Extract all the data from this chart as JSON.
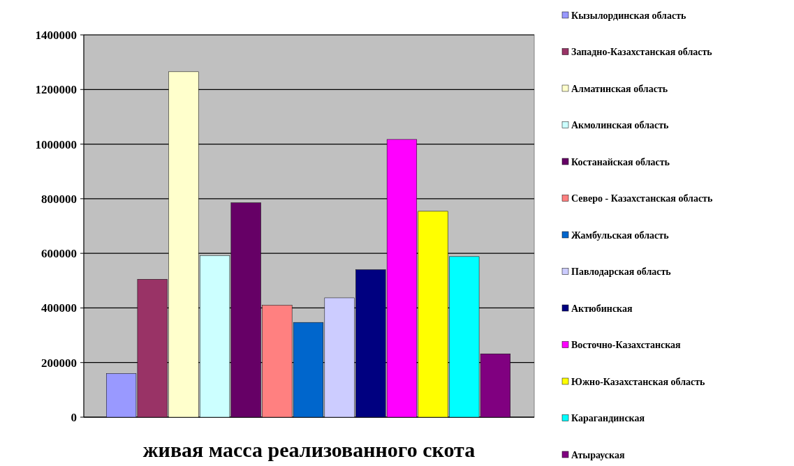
{
  "chart_data": {
    "type": "bar",
    "xlabel": "живая масса реализованного скота",
    "categories": [
      null
    ],
    "series": [
      {
        "name": "Кызылординская  область",
        "color": "#9999ff",
        "values": [
          160000
        ]
      },
      {
        "name": "Западно-Казахстанская  область",
        "color": "#993366",
        "values": [
          505000
        ]
      },
      {
        "name": "Алматинская область",
        "color": "#ffffcc",
        "values": [
          1265000
        ]
      },
      {
        "name": "Акмолинская область",
        "color": "#ccffff",
        "values": [
          592000
        ]
      },
      {
        "name": "Костанайская область",
        "color": "#660066",
        "values": [
          785000
        ]
      },
      {
        "name": "Северо - Казахстанская область",
        "color": "#ff8080",
        "values": [
          410000
        ]
      },
      {
        "name": "Жамбульская  область",
        "color": "#0066cc",
        "values": [
          347000
        ]
      },
      {
        "name": "Павлодарская  область",
        "color": "#ccccff",
        "values": [
          437000
        ]
      },
      {
        "name": "Актюбинская",
        "color": "#000080",
        "values": [
          540000
        ]
      },
      {
        "name": "Восточно-Казахстанская",
        "color": "#ff00ff",
        "values": [
          1017000
        ]
      },
      {
        "name": "Южно-Казахстанская область",
        "color": "#ffff00",
        "values": [
          754000
        ]
      },
      {
        "name": "Карагандинская",
        "color": "#00ffff",
        "values": [
          588000
        ]
      },
      {
        "name": "Атырауская",
        "color": "#800080",
        "values": [
          232000
        ]
      }
    ],
    "ylim": [
      0,
      1400000
    ],
    "yticks": [
      0,
      200000,
      400000,
      600000,
      800000,
      1000000,
      1200000,
      1400000
    ],
    "grid": "y",
    "legend": "right"
  }
}
